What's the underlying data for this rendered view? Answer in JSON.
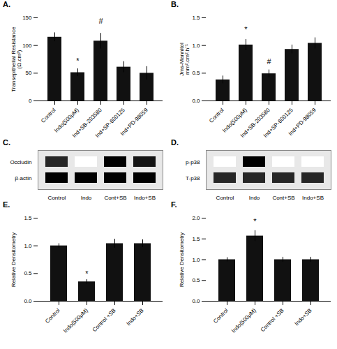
{
  "chart_data": [
    {
      "type": "bar",
      "title": "A.",
      "categories": [
        "Control",
        "Indo(500μM)",
        "Ind+SB-203580",
        "Ind+SP-600125",
        "Ind+PD-98059"
      ],
      "values": [
        115,
        51,
        108,
        61,
        50
      ],
      "errors": [
        8,
        7,
        14,
        10,
        12
      ],
      "color": "#111111",
      "ylabel": "Transepithelial Resistance\n(Ω.cm²)",
      "ylim": [
        0,
        150
      ],
      "yticks": [
        0,
        50,
        100,
        150
      ],
      "annotations": [
        {
          "category": "Indo(500μM)",
          "y": 68,
          "text": "*"
        },
        {
          "category": "Ind+SB-203580",
          "y": 139,
          "text": "#"
        }
      ]
    },
    {
      "type": "bar",
      "title": "B.",
      "categories": [
        "Control",
        "Indo(500μM)",
        "Ind+SB-203580",
        "Ind+SP-600125",
        "Ind+PD-98059"
      ],
      "values": [
        0.38,
        1.01,
        0.49,
        0.93,
        1.04
      ],
      "errors": [
        0.07,
        0.1,
        0.07,
        0.08,
        0.1
      ],
      "color": "#111111",
      "ylabel": "Jms-Mannitol\nmm².cm².h⁻¹",
      "ylim": [
        0,
        1.5
      ],
      "yticks": [
        {
          "value": 0,
          "label": "0.0"
        },
        0.5,
        {
          "value": 1,
          "label": "1.0"
        },
        1.5
      ],
      "annotations": [
        {
          "category": "Indo(500μM)",
          "y": 1.24,
          "text": "*"
        },
        {
          "category": "Ind+SB-203580",
          "y": 0.66,
          "text": "#"
        }
      ]
    },
    {
      "type": "heatmap",
      "title": "C.",
      "rows": [
        "Occludin",
        "β-actin"
      ],
      "columns": [
        "Control",
        "Indo",
        "Cont+SB",
        "Indo+SB"
      ],
      "cells": [
        [
          0.75,
          0.05,
          0.85,
          0.8
        ],
        [
          0.85,
          0.85,
          0.85,
          0.85
        ]
      ]
    },
    {
      "type": "heatmap",
      "title": "D.",
      "rows": [
        "p-p38",
        "T-p38"
      ],
      "columns": [
        "Control",
        "Indo",
        "Cont+SB",
        "Indo+SB"
      ],
      "cells": [
        [
          0.05,
          0.85,
          0.05,
          0.05
        ],
        [
          0.75,
          0.75,
          0.75,
          0.75
        ]
      ]
    },
    {
      "type": "bar",
      "title": "E.",
      "categories": [
        "Control",
        "Indo(500μM)",
        "Control +SB",
        "Indo+SB"
      ],
      "values": [
        1.0,
        0.35,
        1.04,
        1.04
      ],
      "errors": [
        0.04,
        0.04,
        0.08,
        0.07
      ],
      "color": "#111111",
      "ylabel": "Relative Densitometry",
      "ylim": [
        0,
        1.5
      ],
      "yticks": [
        {
          "value": 0,
          "label": "0.0"
        },
        0.5,
        {
          "value": 1,
          "label": "1.0"
        },
        1.5
      ],
      "annotations": [
        {
          "category": "Indo(500μM)",
          "y": 0.45,
          "text": "*"
        }
      ]
    },
    {
      "type": "bar",
      "title": "F.",
      "categories": [
        "Control",
        "Indo(500μM)",
        "Control +SB",
        "Indo+SB"
      ],
      "values": [
        1.0,
        1.57,
        1.0,
        1.0
      ],
      "errors": [
        0.05,
        0.13,
        0.06,
        0.06
      ],
      "color": "#111111",
      "ylabel": "Relative Densitometry",
      "ylim": [
        0,
        2.0
      ],
      "yticks": [
        {
          "value": 0,
          "label": "0.0"
        },
        0.5,
        {
          "value": 1,
          "label": "1.0"
        },
        1.5,
        {
          "value": 2,
          "label": "2.0"
        }
      ],
      "annotations": [
        {
          "category": "Indo(500μM)",
          "y": 1.86,
          "text": "*"
        }
      ]
    }
  ]
}
